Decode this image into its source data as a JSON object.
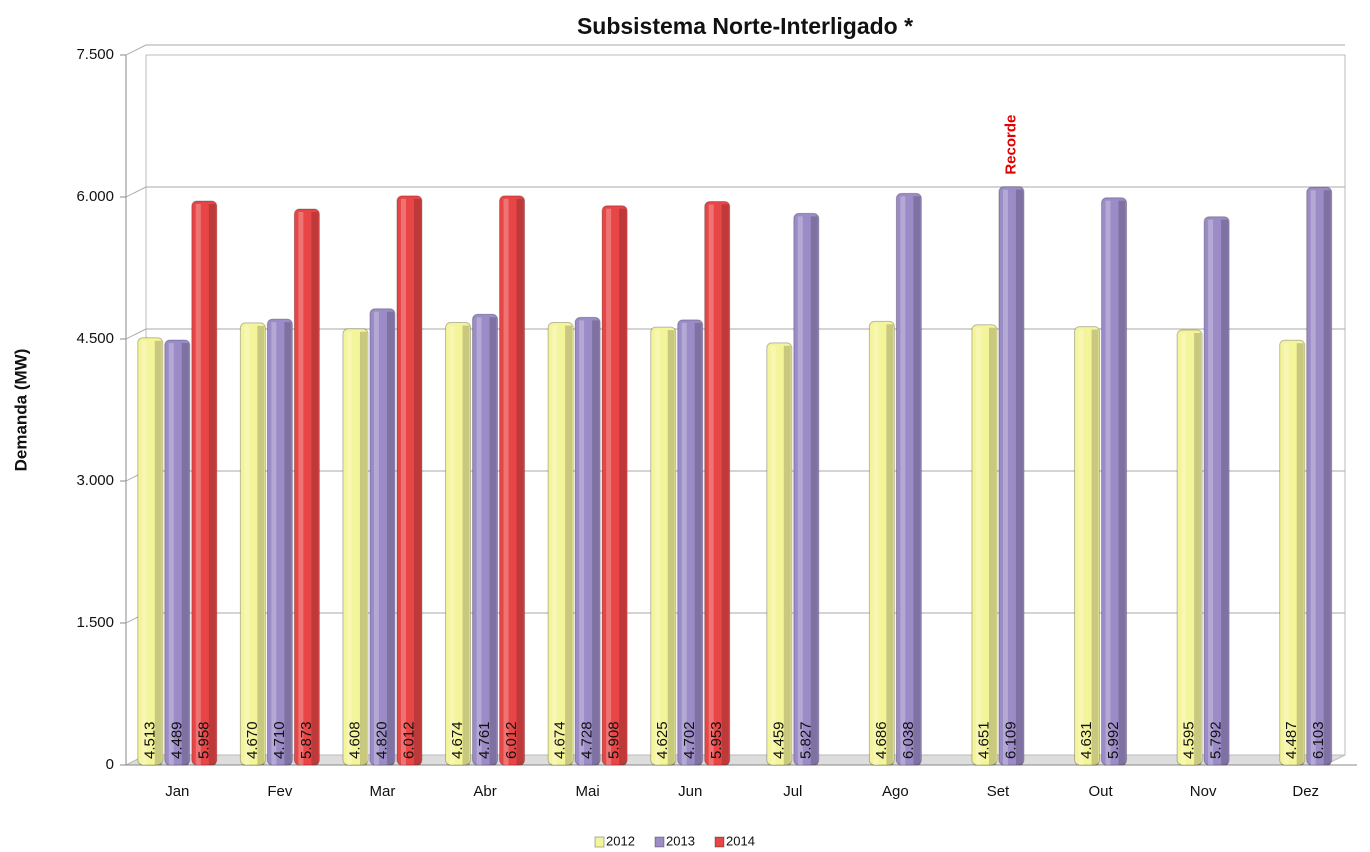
{
  "chart_data": {
    "type": "bar",
    "title": "Subsistema Norte-Interligado *",
    "ylabel": "Demanda (MW)",
    "annotation": "Recorde",
    "categories": [
      "Jan",
      "Fev",
      "Mar",
      "Abr",
      "Mai",
      "Jun",
      "Jul",
      "Ago",
      "Set",
      "Out",
      "Nov",
      "Dez"
    ],
    "series": [
      {
        "name": "2012",
        "color": "#f4f49a",
        "values": [
          4513,
          4670,
          4608,
          4674,
          4674,
          4625,
          4459,
          4686,
          4651,
          4631,
          4595,
          4487
        ],
        "value_labels": [
          "4.513",
          "4.670",
          "4.608",
          "4.674",
          "4.674",
          "4.625",
          "4.459",
          "4.686",
          "4.651",
          "4.631",
          "4.595",
          "4.487"
        ]
      },
      {
        "name": "2013",
        "color": "#9b8bc6",
        "values": [
          4489,
          4710,
          4820,
          4761,
          4728,
          4702,
          5827,
          6038,
          6109,
          5992,
          5792,
          6103
        ],
        "value_labels": [
          "4.489",
          "4.710",
          "4.820",
          "4.761",
          "4.728",
          "4.702",
          "5.827",
          "6.038",
          "6.109",
          "5.992",
          "5.792",
          "6.103"
        ]
      },
      {
        "name": "2014",
        "color": "#e84646",
        "values": [
          5958,
          5873,
          6012,
          6012,
          5908,
          5953,
          null,
          null,
          null,
          null,
          null,
          null
        ],
        "value_labels": [
          "5.958",
          "5.873",
          "6.012",
          "6.012",
          "5.908",
          "5.953",
          null,
          null,
          null,
          null,
          null,
          null
        ]
      }
    ],
    "ylim": [
      0,
      7500
    ],
    "yticks": [
      0,
      {
        "value": 1500,
        "label": "1.500"
      },
      {
        "value": 3000,
        "label": "3.000"
      },
      {
        "value": 4500,
        "label": "4.500"
      },
      {
        "value": 6000,
        "label": "6.000"
      },
      {
        "value": 7500,
        "label": "7.500"
      }
    ],
    "grid": true,
    "legend": "bottom"
  }
}
